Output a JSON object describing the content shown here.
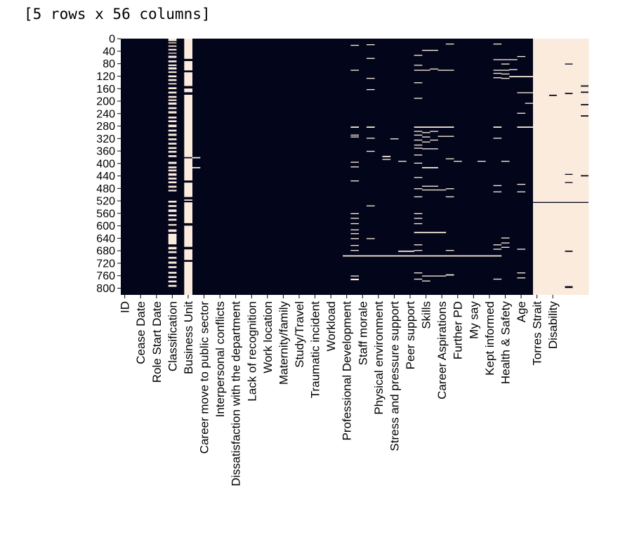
{
  "output_text": "[5 rows x 56 columns]",
  "colors": {
    "present": "#03051a",
    "missing": "#faebdd"
  },
  "chart_data": {
    "type": "heatmap",
    "title": "",
    "xlabel": "",
    "ylabel": "",
    "n_rows": 822,
    "ylim": [
      0,
      822
    ],
    "y_ticks": [
      0,
      40,
      80,
      120,
      160,
      200,
      240,
      280,
      320,
      360,
      400,
      440,
      480,
      520,
      560,
      600,
      640,
      680,
      720,
      760,
      800
    ],
    "x_tick_labels": [
      "ID",
      "Cease Date",
      "Role Start Date",
      "Classification",
      "Business Unit",
      "Career move to public sector",
      "Interpersonal conflicts",
      "Dissatisfaction with the department",
      "Lack of recognition",
      "Work location",
      "Maternity/family",
      "Study/Travel",
      "Traumatic incident",
      "Workload",
      "Professional Development",
      "Staff morale",
      "Physical environment",
      "Stress and pressure support",
      "Peer support",
      "Skills",
      "Career Aspirations",
      "Further PD",
      "My say",
      "Kept informed",
      "Health & Safety",
      "Age",
      "Torres Strait",
      "Disability"
    ],
    "columns": [
      {
        "name": "ID",
        "missing": []
      },
      {
        "name": "",
        "missing": []
      },
      {
        "name": "Cease Date",
        "missing": []
      },
      {
        "name": "",
        "missing": []
      },
      {
        "name": "Role Start Date",
        "missing": []
      },
      {
        "name": "",
        "missing": []
      },
      {
        "name": "Classification",
        "missing": [
          [
            0,
            8
          ],
          [
            12,
            15
          ],
          [
            22,
            26
          ],
          [
            33,
            38
          ],
          [
            45,
            48
          ],
          [
            55,
            62
          ],
          [
            70,
            76
          ],
          [
            83,
            88
          ],
          [
            92,
            99
          ],
          [
            105,
            110
          ],
          [
            118,
            124
          ],
          [
            130,
            136
          ],
          [
            143,
            147
          ],
          [
            156,
            162
          ],
          [
            170,
            176
          ],
          [
            184,
            190
          ],
          [
            195,
            200
          ],
          [
            205,
            212
          ],
          [
            220,
            226
          ],
          [
            233,
            240
          ],
          [
            250,
            256
          ],
          [
            262,
            268
          ],
          [
            276,
            284
          ],
          [
            292,
            298
          ],
          [
            305,
            312
          ],
          [
            320,
            326
          ],
          [
            334,
            340
          ],
          [
            348,
            354
          ],
          [
            360,
            366
          ],
          [
            374,
            380
          ],
          [
            395,
            402
          ],
          [
            410,
            416
          ],
          [
            420,
            426
          ],
          [
            432,
            440
          ],
          [
            446,
            452
          ],
          [
            458,
            464
          ],
          [
            472,
            478
          ],
          [
            485,
            490
          ],
          [
            520,
            526
          ],
          [
            534,
            540
          ],
          [
            548,
            556
          ],
          [
            564,
            570
          ],
          [
            578,
            584
          ],
          [
            595,
            600
          ],
          [
            612,
            620
          ],
          [
            626,
            660
          ],
          [
            668,
            676
          ],
          [
            682,
            688
          ],
          [
            700,
            706
          ],
          [
            715,
            722
          ],
          [
            730,
            736
          ],
          [
            748,
            754
          ],
          [
            762,
            768
          ],
          [
            776,
            782
          ],
          [
            790,
            796
          ]
        ]
      },
      {
        "name": "",
        "missing": []
      },
      {
        "name": "Business Unit",
        "missing": [
          [
            0,
            65
          ],
          [
            72,
            102
          ],
          [
            108,
            152
          ],
          [
            160,
            172
          ],
          [
            180,
            380
          ],
          [
            384,
            455
          ],
          [
            462,
            508
          ],
          [
            516,
            520
          ],
          [
            525,
            592
          ],
          [
            600,
            668
          ],
          [
            676,
            710
          ],
          [
            716,
            822
          ]
        ]
      },
      {
        "name": "",
        "missing": [
          [
            380,
            384
          ],
          [
            412,
            416
          ]
        ]
      },
      {
        "name": "Career move to public sector",
        "missing": []
      },
      {
        "name": "",
        "missing": []
      },
      {
        "name": "Interpersonal conflicts",
        "missing": []
      },
      {
        "name": "",
        "missing": []
      },
      {
        "name": "Dissatisfaction with the department",
        "missing": []
      },
      {
        "name": "",
        "missing": []
      },
      {
        "name": "Lack of recognition",
        "missing": []
      },
      {
        "name": "",
        "missing": []
      },
      {
        "name": "Work location",
        "missing": []
      },
      {
        "name": "",
        "missing": []
      },
      {
        "name": "Maternity/family",
        "missing": []
      },
      {
        "name": "",
        "missing": []
      },
      {
        "name": "Study/Travel",
        "missing": []
      },
      {
        "name": "",
        "missing": []
      },
      {
        "name": "Traumatic incident",
        "missing": []
      },
      {
        "name": "",
        "missing": []
      },
      {
        "name": "Workload",
        "missing": []
      },
      {
        "name": "",
        "missing": []
      },
      {
        "name": "Professional Development",
        "missing": [
          [
            695,
            699
          ]
        ]
      },
      {
        "name": "",
        "missing": [
          [
            20,
            23
          ],
          [
            100,
            103
          ],
          [
            282,
            286
          ],
          [
            308,
            311
          ],
          [
            314,
            317
          ],
          [
            395,
            398
          ],
          [
            410,
            413
          ],
          [
            455,
            458
          ],
          [
            560,
            563
          ],
          [
            575,
            578
          ],
          [
            592,
            595
          ],
          [
            612,
            615
          ],
          [
            624,
            627
          ],
          [
            640,
            643
          ],
          [
            662,
            665
          ],
          [
            678,
            681
          ],
          [
            695,
            699
          ],
          [
            760,
            763
          ],
          [
            770,
            775
          ]
        ]
      },
      {
        "name": "Staff morale",
        "missing": [
          [
            695,
            699
          ]
        ]
      },
      {
        "name": "",
        "missing": [
          [
            18,
            21
          ],
          [
            62,
            65
          ],
          [
            126,
            129
          ],
          [
            162,
            165
          ],
          [
            282,
            286
          ],
          [
            318,
            321
          ],
          [
            360,
            363
          ],
          [
            535,
            538
          ],
          [
            640,
            643
          ],
          [
            695,
            699
          ]
        ]
      },
      {
        "name": "Physical environment",
        "missing": [
          [
            695,
            699
          ]
        ]
      },
      {
        "name": "",
        "missing": [
          [
            376,
            380
          ],
          [
            386,
            389
          ],
          [
            695,
            699
          ]
        ]
      },
      {
        "name": "Stress and pressure support",
        "missing": [
          [
            320,
            323
          ],
          [
            695,
            699
          ]
        ]
      },
      {
        "name": "",
        "missing": [
          [
            392,
            395
          ],
          [
            680,
            684
          ],
          [
            695,
            699
          ]
        ]
      },
      {
        "name": "Peer support",
        "missing": [
          [
            680,
            684
          ],
          [
            695,
            699
          ]
        ]
      },
      {
        "name": "",
        "missing": [
          [
            52,
            55
          ],
          [
            84,
            87
          ],
          [
            100,
            103
          ],
          [
            140,
            143
          ],
          [
            190,
            193
          ],
          [
            282,
            286
          ],
          [
            296,
            299
          ],
          [
            308,
            311
          ],
          [
            324,
            327
          ],
          [
            340,
            343
          ],
          [
            350,
            353
          ],
          [
            372,
            375
          ],
          [
            398,
            401
          ],
          [
            444,
            447
          ],
          [
            480,
            483
          ],
          [
            506,
            509
          ],
          [
            560,
            563
          ],
          [
            575,
            578
          ],
          [
            592,
            595
          ],
          [
            620,
            624
          ],
          [
            660,
            663
          ],
          [
            678,
            681
          ],
          [
            695,
            699
          ],
          [
            750,
            753
          ],
          [
            770,
            773
          ]
        ]
      },
      {
        "name": "Skills",
        "missing": [
          [
            36,
            39
          ],
          [
            100,
            103
          ],
          [
            282,
            286
          ],
          [
            300,
            303
          ],
          [
            314,
            317
          ],
          [
            330,
            333
          ],
          [
            352,
            355
          ],
          [
            412,
            416
          ],
          [
            472,
            475
          ],
          [
            484,
            487
          ],
          [
            620,
            624
          ],
          [
            695,
            699
          ],
          [
            760,
            763
          ],
          [
            776,
            779
          ]
        ]
      },
      {
        "name": "",
        "missing": [
          [
            36,
            39
          ],
          [
            96,
            99
          ],
          [
            282,
            286
          ],
          [
            296,
            299
          ],
          [
            324,
            327
          ],
          [
            352,
            355
          ],
          [
            412,
            416
          ],
          [
            472,
            475
          ],
          [
            484,
            487
          ],
          [
            620,
            624
          ],
          [
            695,
            699
          ],
          [
            760,
            763
          ]
        ]
      },
      {
        "name": "Career Aspirations",
        "missing": [
          [
            100,
            103
          ],
          [
            282,
            286
          ],
          [
            312,
            315
          ],
          [
            484,
            487
          ],
          [
            620,
            624
          ],
          [
            695,
            699
          ],
          [
            760,
            763
          ]
        ]
      },
      {
        "name": "",
        "missing": [
          [
            16,
            19
          ],
          [
            100,
            103
          ],
          [
            282,
            286
          ],
          [
            312,
            315
          ],
          [
            384,
            387
          ],
          [
            480,
            483
          ],
          [
            506,
            509
          ],
          [
            678,
            681
          ],
          [
            695,
            699
          ],
          [
            756,
            760
          ]
        ]
      },
      {
        "name": "Further PD",
        "missing": [
          [
            392,
            395
          ],
          [
            695,
            699
          ]
        ]
      },
      {
        "name": "",
        "missing": [
          [
            695,
            699
          ]
        ]
      },
      {
        "name": "My say",
        "missing": [
          [
            695,
            699
          ]
        ]
      },
      {
        "name": "",
        "missing": [
          [
            392,
            395
          ],
          [
            695,
            699
          ]
        ]
      },
      {
        "name": "Kept informed",
        "missing": [
          [
            695,
            699
          ]
        ]
      },
      {
        "name": "",
        "missing": [
          [
            16,
            19
          ],
          [
            66,
            69
          ],
          [
            100,
            103
          ],
          [
            110,
            113
          ],
          [
            124,
            127
          ],
          [
            282,
            286
          ],
          [
            318,
            321
          ],
          [
            470,
            473
          ],
          [
            490,
            493
          ],
          [
            660,
            663
          ],
          [
            674,
            677
          ],
          [
            695,
            699
          ],
          [
            770,
            773
          ]
        ]
      },
      {
        "name": "Health & Safety",
        "missing": [
          [
            66,
            69
          ],
          [
            80,
            83
          ],
          [
            100,
            103
          ],
          [
            112,
            115
          ],
          [
            126,
            129
          ],
          [
            392,
            395
          ],
          [
            638,
            641
          ],
          [
            654,
            657
          ],
          [
            668,
            671
          ]
        ]
      },
      {
        "name": "",
        "missing": [
          [
            66,
            69
          ],
          [
            98,
            101
          ],
          [
            120,
            124
          ]
        ]
      },
      {
        "name": "Age",
        "missing": [
          [
            56,
            59
          ],
          [
            120,
            124
          ],
          [
            172,
            175
          ],
          [
            238,
            241
          ],
          [
            282,
            286
          ],
          [
            466,
            469
          ],
          [
            490,
            493
          ],
          [
            674,
            677
          ],
          [
            750,
            753
          ],
          [
            766,
            769
          ]
        ]
      },
      {
        "name": "",
        "missing": [
          [
            120,
            124
          ],
          [
            172,
            175
          ],
          [
            206,
            209
          ],
          [
            282,
            286
          ]
        ]
      },
      {
        "name": "Torres Strait",
        "missing": [
          [
            0,
            524
          ],
          [
            527,
            822
          ]
        ]
      },
      {
        "name": "",
        "missing": [
          [
            0,
            524
          ],
          [
            527,
            822
          ]
        ]
      },
      {
        "name": "",
        "missing": [
          [
            0,
            180
          ],
          [
            184,
            524
          ],
          [
            527,
            822
          ]
        ]
      },
      {
        "name": "Disability",
        "missing": [
          [
            0,
            524
          ],
          [
            527,
            822
          ]
        ]
      },
      {
        "name": "",
        "missing": [
          [
            0,
            80
          ],
          [
            83,
            174
          ],
          [
            178,
            434
          ],
          [
            437,
            460
          ],
          [
            463,
            524
          ],
          [
            527,
            680
          ],
          [
            684,
            794
          ],
          [
            800,
            822
          ]
        ]
      },
      {
        "name": "",
        "missing": [
          [
            0,
            524
          ],
          [
            527,
            822
          ]
        ]
      },
      {
        "name": "",
        "missing": [
          [
            0,
            150
          ],
          [
            154,
            170
          ],
          [
            174,
            210
          ],
          [
            214,
            246
          ],
          [
            250,
            438
          ],
          [
            442,
            524
          ],
          [
            527,
            822
          ]
        ]
      }
    ]
  }
}
